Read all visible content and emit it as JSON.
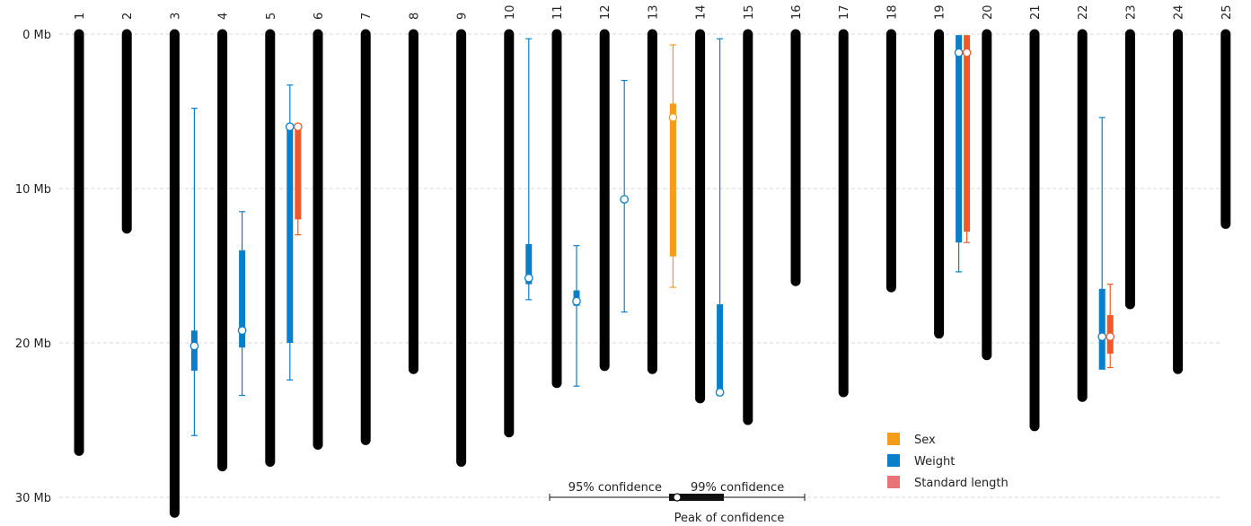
{
  "chart_data": {
    "type": "chromosome-map",
    "y_axis": {
      "ylim": [
        0,
        31
      ],
      "ticks": [
        {
          "value": 0,
          "label": "0 Mb"
        },
        {
          "value": 10,
          "label": "10 Mb"
        },
        {
          "value": 20,
          "label": "20 Mb"
        },
        {
          "value": 30,
          "label": "30 Mb"
        }
      ],
      "grid": true,
      "inverted": true
    },
    "chromosomes": [
      {
        "label": "1",
        "length": 27
      },
      {
        "label": "2",
        "length": 12.6
      },
      {
        "label": "3",
        "length": 31
      },
      {
        "label": "4",
        "length": 28
      },
      {
        "label": "5",
        "length": 27.7
      },
      {
        "label": "6",
        "length": 26.6
      },
      {
        "label": "7",
        "length": 26.3
      },
      {
        "label": "8",
        "length": 21.7
      },
      {
        "label": "9",
        "length": 27.7
      },
      {
        "label": "10",
        "length": 25.8
      },
      {
        "label": "11",
        "length": 22.6
      },
      {
        "label": "12",
        "length": 21.5
      },
      {
        "label": "13",
        "length": 21.7
      },
      {
        "label": "14",
        "length": 23.6
      },
      {
        "label": "15",
        "length": 25
      },
      {
        "label": "16",
        "length": 16
      },
      {
        "label": "17",
        "length": 23.2
      },
      {
        "label": "18",
        "length": 16.4
      },
      {
        "label": "19",
        "length": 19.4
      },
      {
        "label": "20",
        "length": 20.8
      },
      {
        "label": "21",
        "length": 25.4
      },
      {
        "label": "22",
        "length": 23.5
      },
      {
        "label": "23",
        "length": 17.5
      },
      {
        "label": "24",
        "length": 21.7
      },
      {
        "label": "25",
        "length": 12.3
      }
    ],
    "series": [
      {
        "name": "Sex",
        "color": "#f59c1a"
      },
      {
        "name": "Weight",
        "color": "#0a7fc9"
      },
      {
        "name": "Standard length",
        "color": "#e8747a"
      }
    ],
    "qtls": [
      {
        "chromosome": "3",
        "series": "Weight",
        "ci95": [
          19.2,
          21.8
        ],
        "ci99": [
          4.8,
          26
        ],
        "peak": 20.2
      },
      {
        "chromosome": "4",
        "series": "Weight",
        "ci95": [
          14,
          20.3
        ],
        "ci99": [
          11.5,
          23.4
        ],
        "peak": 19.2
      },
      {
        "chromosome": "5",
        "series": "Weight",
        "ci95": [
          6,
          20
        ],
        "ci99": [
          3.3,
          22.4
        ],
        "peak": 6
      },
      {
        "chromosome": "5",
        "series": "Standard length",
        "ci95": [
          6,
          12
        ],
        "ci99": [
          6,
          13
        ],
        "peak": 6
      },
      {
        "chromosome": "10",
        "series": "Weight",
        "ci95": [
          13.6,
          16.2
        ],
        "ci99": [
          0.3,
          17.2
        ],
        "peak": 15.8
      },
      {
        "chromosome": "11",
        "series": "Weight",
        "ci95": [
          16.6,
          17.6
        ],
        "ci99": [
          13.7,
          22.8
        ],
        "peak": 17.3
      },
      {
        "chromosome": "12",
        "series": "Weight",
        "ci95": [
          10.7,
          10.7
        ],
        "ci99": [
          3,
          18
        ],
        "peak": 10.7
      },
      {
        "chromosome": "13",
        "series": "Sex",
        "ci95": [
          4.5,
          14.4
        ],
        "ci99": [
          0.7,
          16.4
        ],
        "peak": 5.4
      },
      {
        "chromosome": "14",
        "series": "Weight",
        "ci95": [
          17.5,
          23.3
        ],
        "ci99": [
          0.3,
          23.4
        ],
        "peak": 23.2
      },
      {
        "chromosome": "19",
        "series": "Weight",
        "ci95": [
          0.1,
          13.5
        ],
        "ci99": [
          0.1,
          15.4
        ],
        "peak": 1.2
      },
      {
        "chromosome": "19",
        "series": "Standard length",
        "ci95": [
          0.1,
          12.8
        ],
        "ci99": [
          0.1,
          13.5
        ],
        "peak": 1.2
      },
      {
        "chromosome": "22",
        "series": "Weight",
        "ci95": [
          16.5,
          21.7
        ],
        "ci99": [
          5.4,
          21.7
        ],
        "peak": 19.6
      },
      {
        "chromosome": "22",
        "series": "Standard length",
        "ci95": [
          18.2,
          20.7
        ],
        "ci99": [
          16.2,
          21.6
        ],
        "peak": 19.6
      }
    ],
    "legend": {
      "placement": "bottom-right",
      "entries": [
        {
          "label": "Sex",
          "color": "#f59c1a"
        },
        {
          "label": "Weight",
          "color": "#0a7fc9"
        },
        {
          "label": "Standard length",
          "color": "#e8747a"
        }
      ]
    },
    "key": {
      "left_label": "95% confidence",
      "right_label": "99% confidence",
      "bottom_label": "Peak of confidence"
    }
  }
}
